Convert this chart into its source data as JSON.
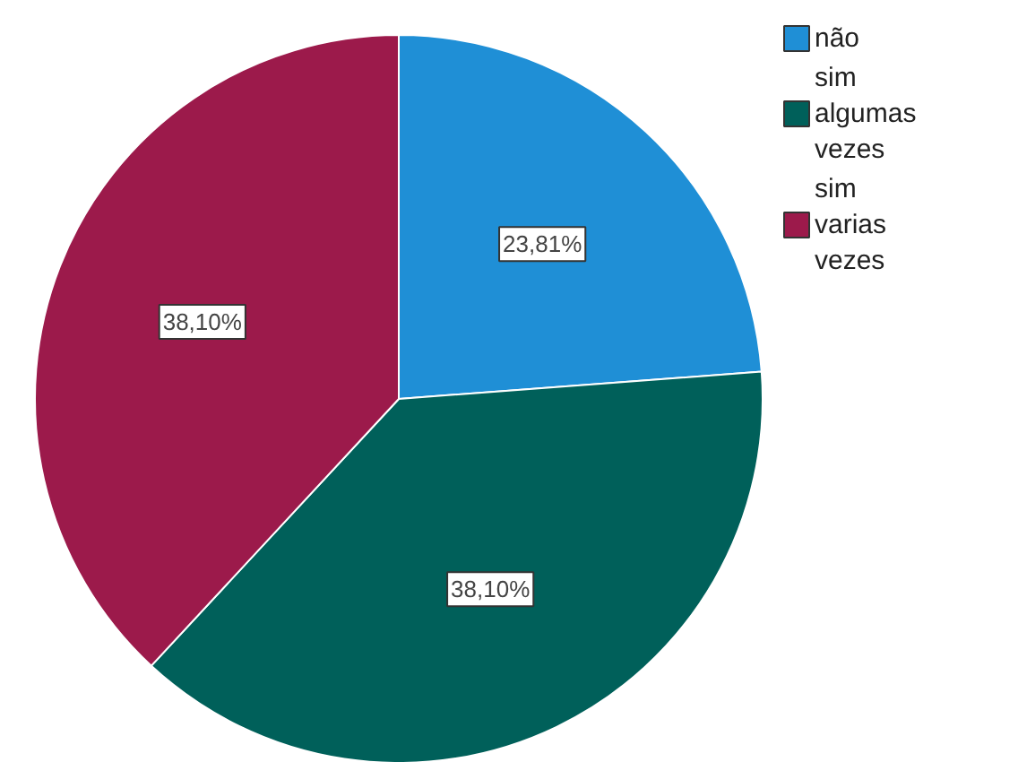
{
  "chart_data": {
    "type": "pie",
    "categories": [
      "não",
      "sim algumas vezes",
      "sim varias vezes"
    ],
    "values": [
      23.81,
      38.1,
      38.1
    ],
    "colors": [
      "#1f8fd6",
      "#00605a",
      "#9c1a4b"
    ],
    "value_labels": [
      "23,81%",
      "38,10%",
      "38,10%"
    ],
    "legend": "top right"
  }
}
